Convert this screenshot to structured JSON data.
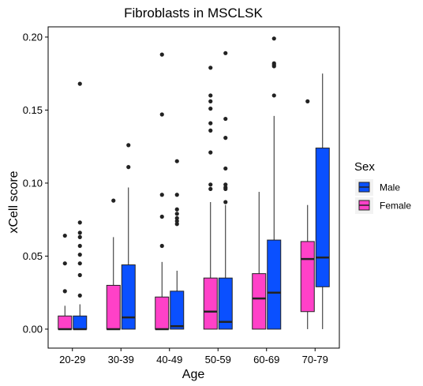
{
  "chart_data": {
    "type": "boxplot",
    "title": "Fibroblasts in MSCLSK",
    "xlabel": "Age",
    "ylabel": "xCell score",
    "ylim": [
      -0.013,
      0.207
    ],
    "yticks": [
      "0.00",
      "0.05",
      "0.10",
      "0.15",
      "0.20"
    ],
    "ytick_values": [
      0,
      0.05,
      0.1,
      0.15,
      0.2
    ],
    "categories": [
      "20-29",
      "30-39",
      "40-49",
      "50-59",
      "60-69",
      "70-79"
    ],
    "grid": false,
    "legend": {
      "title": "Sex",
      "position": "right",
      "entries": [
        {
          "label": "Male",
          "color": "#0A50FF"
        },
        {
          "label": "Female",
          "color": "#FF41C8"
        }
      ]
    },
    "series": [
      {
        "name": "Female",
        "color": "#FF41C8",
        "boxes": [
          {
            "q1": 0.0,
            "median": 0.0,
            "q3": 0.009,
            "whisker_low": 0.0,
            "whisker_high": 0.016,
            "outliers": [
              0.026,
              0.045,
              0.064
            ]
          },
          {
            "q1": 0.0,
            "median": 0.0,
            "q3": 0.03,
            "whisker_low": 0.0,
            "whisker_high": 0.063,
            "outliers": [
              0.088
            ]
          },
          {
            "q1": 0.0,
            "median": 0.0,
            "q3": 0.022,
            "whisker_low": 0.0,
            "whisker_high": 0.046,
            "outliers": [
              0.057,
              0.077,
              0.092,
              0.147,
              0.188
            ]
          },
          {
            "q1": 0.0,
            "median": 0.012,
            "q3": 0.035,
            "whisker_low": 0.0,
            "whisker_high": 0.087,
            "outliers": [
              0.096,
              0.099,
              0.121,
              0.136,
              0.141,
              0.151,
              0.156,
              0.16,
              0.179
            ]
          },
          {
            "q1": 0.0,
            "median": 0.021,
            "q3": 0.038,
            "whisker_low": 0.0,
            "whisker_high": 0.094,
            "outliers": []
          },
          {
            "q1": 0.012,
            "median": 0.048,
            "q3": 0.06,
            "whisker_low": 0.0,
            "whisker_high": 0.085,
            "outliers": [
              0.156
            ]
          }
        ]
      },
      {
        "name": "Male",
        "color": "#0A50FF",
        "boxes": [
          {
            "q1": 0.0,
            "median": 0.0,
            "q3": 0.009,
            "whisker_low": 0.0,
            "whisker_high": 0.017,
            "outliers": [
              0.023,
              0.037,
              0.045,
              0.051,
              0.057,
              0.063,
              0.066,
              0.073,
              0.168
            ]
          },
          {
            "q1": 0.0,
            "median": 0.008,
            "q3": 0.044,
            "whisker_low": 0.0,
            "whisker_high": 0.097,
            "outliers": [
              0.111,
              0.126
            ]
          },
          {
            "q1": 0.0,
            "median": 0.002,
            "q3": 0.026,
            "whisker_low": 0.0,
            "whisker_high": 0.04,
            "outliers": [
              0.072,
              0.074,
              0.076,
              0.079,
              0.082,
              0.092,
              0.115
            ]
          },
          {
            "q1": 0.0,
            "median": 0.005,
            "q3": 0.035,
            "whisker_low": 0.0,
            "whisker_high": 0.085,
            "outliers": [
              0.087,
              0.096,
              0.097,
              0.099,
              0.11,
              0.131,
              0.144,
              0.189
            ]
          },
          {
            "q1": 0.0,
            "median": 0.025,
            "q3": 0.061,
            "whisker_low": 0.0,
            "whisker_high": 0.146,
            "outliers": [
              0.16,
              0.18,
              0.181,
              0.182,
              0.199
            ]
          },
          {
            "q1": 0.029,
            "median": 0.049,
            "q3": 0.124,
            "whisker_low": 0.0,
            "whisker_high": 0.175,
            "outliers": []
          }
        ]
      }
    ]
  }
}
